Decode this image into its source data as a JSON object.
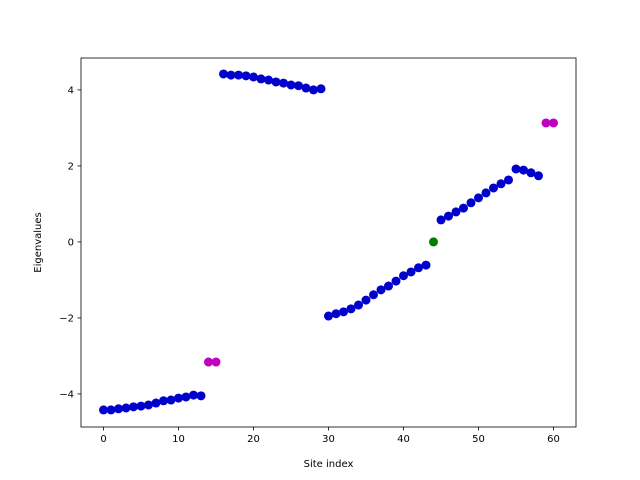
{
  "chart_data": {
    "type": "scatter",
    "xlabel": "Site index",
    "ylabel": "Eigenvalues",
    "xlim": [
      -3,
      63
    ],
    "ylim": [
      -4.87,
      4.84
    ],
    "xticks": [
      0,
      10,
      20,
      30,
      40,
      50,
      60
    ],
    "yticks": [
      {
        "value": -4,
        "label": "−4"
      },
      {
        "value": -2,
        "label": "−2"
      },
      0,
      2,
      4
    ],
    "series": [
      {
        "color": "#0000cc",
        "x": [
          0,
          1,
          2,
          3,
          4,
          5,
          6,
          7,
          8,
          9,
          10,
          11,
          12,
          13,
          16,
          17,
          18,
          19,
          20,
          21,
          22,
          23,
          24,
          25,
          26,
          27,
          28,
          29,
          30,
          31,
          32,
          33,
          34,
          35,
          36,
          37,
          38,
          39,
          40,
          41,
          42,
          43,
          45,
          46,
          47,
          48,
          49,
          50,
          51,
          52,
          53,
          54,
          55,
          56,
          57,
          58
        ],
        "values": [
          -4.42,
          -4.42,
          -4.39,
          -4.37,
          -4.34,
          -4.32,
          -4.29,
          -4.24,
          -4.18,
          -4.16,
          -4.11,
          -4.08,
          -4.03,
          -4.05,
          4.42,
          4.39,
          4.39,
          4.37,
          4.34,
          4.29,
          4.26,
          4.21,
          4.18,
          4.13,
          4.11,
          4.05,
          4.0,
          4.03,
          -1.95,
          -1.89,
          -1.84,
          -1.76,
          -1.66,
          -1.53,
          -1.39,
          -1.26,
          -1.16,
          -1.03,
          -0.89,
          -0.79,
          -0.68,
          -0.61,
          0.58,
          0.68,
          0.79,
          0.89,
          1.03,
          1.16,
          1.29,
          1.42,
          1.53,
          1.63,
          1.92,
          1.89,
          1.82,
          1.74
        ]
      },
      {
        "color": "#bf00bf",
        "x": [
          14,
          15,
          59,
          60
        ],
        "values": [
          -3.16,
          -3.16,
          3.13,
          3.13
        ]
      },
      {
        "color": "#007f00",
        "x": [
          44
        ],
        "values": [
          0
        ]
      }
    ]
  }
}
